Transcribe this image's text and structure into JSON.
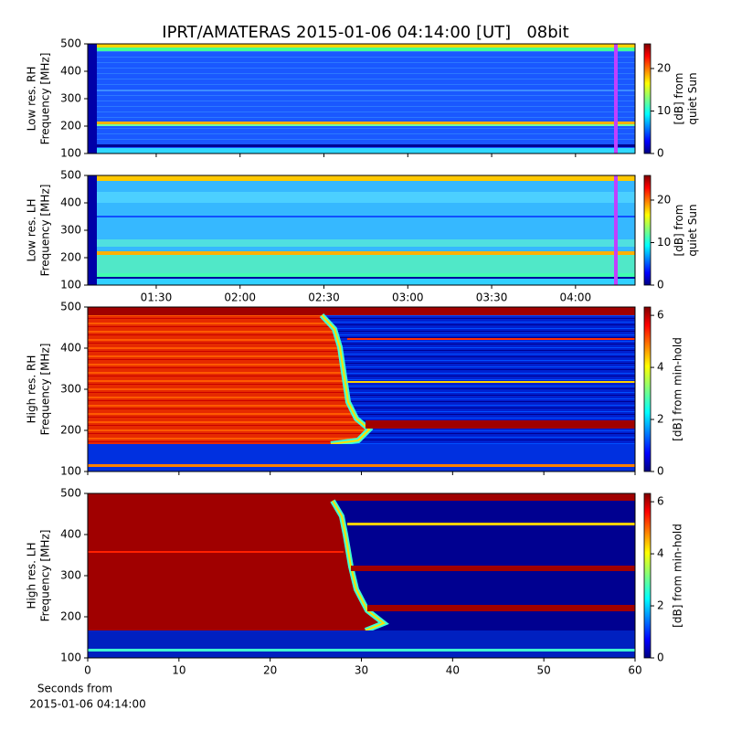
{
  "title": "IPRT/AMATERAS 2015-01-06 04:14:00 [UT]   08bit",
  "xlabel": [
    "Seconds from",
    "2015-01-06 04:14:00"
  ],
  "chart_data": [
    {
      "type": "heatmap",
      "ylabel": [
        "Low res. RH",
        "Frequency [MHz]"
      ],
      "ylim": [
        100,
        500
      ],
      "yticks": [
        100,
        200,
        300,
        400,
        500
      ],
      "xlim": [
        65.5,
        261.3
      ],
      "xticks": [
        90,
        120,
        150,
        180,
        210,
        240
      ],
      "xtick_labels": false,
      "colormap": "jet",
      "colorbar": {
        "label": [
          "[dB] from",
          "quiet Sun"
        ],
        "lim": [
          0,
          25.8
        ],
        "ticks": [
          0,
          10,
          20
        ]
      }
    },
    {
      "type": "heatmap",
      "ylabel": [
        "Low res. LH",
        "Frequency [MHz]"
      ],
      "ylim": [
        100,
        500
      ],
      "yticks": [
        100,
        200,
        300,
        400,
        500
      ],
      "xlim": [
        65.5,
        261.3
      ],
      "xticks": [
        {
          "value": 90,
          "label": "01:30"
        },
        {
          "value": 120,
          "label": "02:00"
        },
        {
          "value": 150,
          "label": "02:30"
        },
        {
          "value": 180,
          "label": "03:00"
        },
        {
          "value": 210,
          "label": "03:30"
        },
        {
          "value": 240,
          "label": "04:00"
        }
      ],
      "xtick_labels": true,
      "colormap": "jet",
      "colorbar": {
        "label": [
          "[dB] from",
          "quiet Sun"
        ],
        "lim": [
          0,
          25.8
        ],
        "ticks": [
          0,
          10,
          20
        ]
      }
    },
    {
      "type": "heatmap",
      "ylabel": [
        "High res. RH",
        "Frequency [MHz]"
      ],
      "ylim": [
        100,
        500
      ],
      "yticks": [
        100,
        200,
        300,
        400,
        500
      ],
      "xlim": [
        0,
        60
      ],
      "xticks": [
        0,
        10,
        20,
        30,
        40,
        50,
        60
      ],
      "xtick_labels": false,
      "colormap": "jet",
      "colorbar": {
        "label": [
          "[dB] from min-hold"
        ],
        "lim": [
          0,
          6.32
        ],
        "ticks": [
          0,
          2,
          4,
          6
        ]
      }
    },
    {
      "type": "heatmap",
      "ylabel": [
        "High res. LH",
        "Frequency [MHz]"
      ],
      "ylim": [
        100,
        500
      ],
      "yticks": [
        100,
        200,
        300,
        400,
        500
      ],
      "xlim": [
        0,
        60
      ],
      "xticks": [
        0,
        10,
        20,
        30,
        40,
        50,
        60
      ],
      "xtick_labels": true,
      "colormap": "jet",
      "colorbar": {
        "label": [
          "[dB] from min-hold"
        ],
        "lim": [
          0,
          6.32
        ],
        "ticks": [
          0,
          2,
          4,
          6
        ]
      }
    }
  ]
}
